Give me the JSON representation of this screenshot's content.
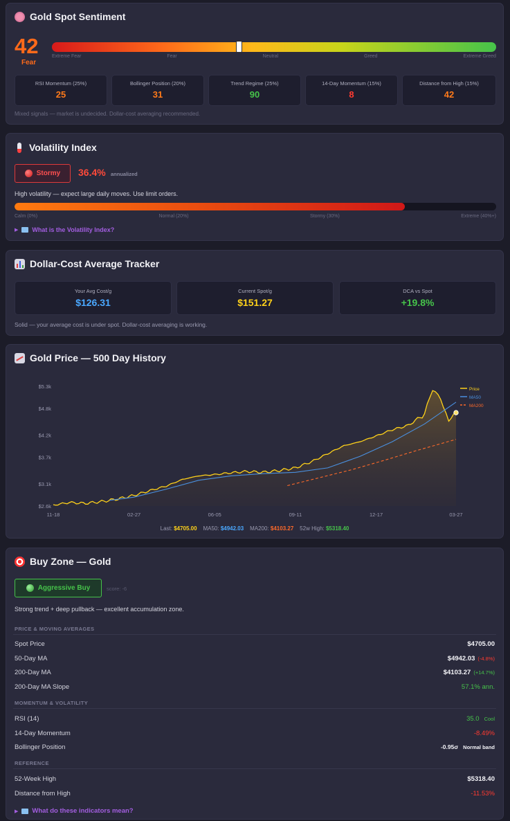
{
  "sentiment": {
    "title": "Gold Spot Sentiment",
    "score": "42",
    "label": "Fear",
    "gauge_level": 0.42,
    "scale": [
      "Extreme Fear",
      "Fear",
      "Neutral",
      "Greed",
      "Extreme Greed"
    ],
    "metrics": [
      {
        "label": "RSI Momentum (25%)",
        "value": "25",
        "color": "#ff7a1a"
      },
      {
        "label": "Bollinger Position (20%)",
        "value": "31",
        "color": "#ff7a1a"
      },
      {
        "label": "Trend Regime (25%)",
        "value": "90",
        "color": "#46c34a"
      },
      {
        "label": "14-Day Momentum (15%)",
        "value": "8",
        "color": "#ff3b30"
      },
      {
        "label": "Distance from High (15%)",
        "value": "42",
        "color": "#ff7a1a"
      }
    ],
    "note": "Mixed signals — market is undecided. Dollar-cost averaging recommended."
  },
  "volatility": {
    "title": "Volatility Index",
    "badge": "Stormy",
    "value": "36.4%",
    "unit": "annualized",
    "description": "High volatility — expect large daily moves. Use limit orders.",
    "level": 0.81,
    "scale": [
      "Calm (0%)",
      "Normal (20%)",
      "Stormy (30%)",
      "Extreme (40%+)"
    ],
    "link": "What is the Volatility Index?"
  },
  "dca": {
    "title": "Dollar-Cost Average Tracker",
    "cards": [
      {
        "label": "Your Avg Cost/g",
        "value": "$126.31",
        "color": "#4aa8ff"
      },
      {
        "label": "Current Spot/g",
        "value": "$151.27",
        "color": "#ffd21a"
      },
      {
        "label": "DCA vs Spot",
        "value": "+19.8%",
        "color": "#46c34a"
      }
    ],
    "note": "Solid — your average cost is under spot. Dollar-cost averaging is working."
  },
  "history": {
    "title": "Gold Price — 500 Day History",
    "legend": [
      "Price",
      "MA50",
      "MA200"
    ],
    "footer": {
      "last_label": "Last:",
      "last_value": "$4705.00",
      "ma50_label": "MA50:",
      "ma50_value": "$4942.03",
      "ma200_label": "MA200:",
      "ma200_value": "$4103.27",
      "high_label": "52w High:",
      "high_value": "$5318.40"
    }
  },
  "chart_data": {
    "type": "line",
    "title": "",
    "xlabel": "",
    "ylabel": "",
    "y_ticks": [
      "$5.3k",
      "$4.8k",
      "$4.2k",
      "$3.7k",
      "$3.1k",
      "$2.6k"
    ],
    "y_tick_values": [
      5300,
      4800,
      4200,
      3700,
      3100,
      2600
    ],
    "x_ticks": [
      "11-18",
      "02-27",
      "06-05",
      "09-11",
      "12-17",
      "03-27"
    ],
    "ylim": [
      2600,
      5300
    ],
    "series": [
      {
        "name": "Price",
        "color": "#ffd21a",
        "x": [
          0,
          20,
          40,
          60,
          80,
          100,
          120,
          140,
          160,
          180,
          200,
          220,
          240,
          260,
          280,
          300,
          320,
          340,
          360,
          380,
          400,
          420,
          440,
          460,
          470,
          480,
          490,
          499
        ],
        "values": [
          2620,
          2680,
          2660,
          2700,
          2760,
          2840,
          2950,
          3050,
          3200,
          3280,
          3310,
          3350,
          3380,
          3360,
          3400,
          3460,
          3600,
          3780,
          3960,
          4050,
          4180,
          4320,
          4420,
          4680,
          5200,
          5050,
          4520,
          4705
        ]
      },
      {
        "name": "MA50",
        "color": "#4a90e0",
        "x": [
          70,
          100,
          140,
          180,
          220,
          260,
          300,
          340,
          380,
          420,
          460,
          499
        ],
        "values": [
          2730,
          2800,
          2980,
          3180,
          3280,
          3330,
          3360,
          3460,
          3720,
          4050,
          4450,
          4942
        ]
      },
      {
        "name": "MA200",
        "color": "#ff6a2a",
        "x": [
          290,
          330,
          370,
          410,
          450,
          499
        ],
        "values": [
          3060,
          3240,
          3420,
          3630,
          3850,
          4103
        ]
      }
    ]
  },
  "buyzone": {
    "title": "Buy Zone — Gold",
    "badge": "Aggressive Buy",
    "score": "score: -6",
    "description": "Strong trend + deep pullback — excellent accumulation zone.",
    "sections": {
      "price": "PRICE & MOVING AVERAGES",
      "momentum": "MOMENTUM & VOLATILITY",
      "reference": "REFERENCE"
    },
    "rows": {
      "spot": {
        "label": "Spot Price",
        "value": "$4705.00"
      },
      "ma50": {
        "label": "50-Day MA",
        "value": "$4942.03",
        "extra": "(-4.8%)"
      },
      "ma200": {
        "label": "200-Day MA",
        "value": "$4103.27",
        "extra": "(+14.7%)"
      },
      "slope": {
        "label": "200-Day MA Slope",
        "value": "57.1% ann."
      },
      "rsi": {
        "label": "RSI (14)",
        "value": "35.0",
        "extra": "Cool"
      },
      "mom": {
        "label": "14-Day Momentum",
        "value": "-8.49%"
      },
      "boll": {
        "label": "Bollinger Position",
        "value": "-0.95σ",
        "extra": "Normal band"
      },
      "high": {
        "label": "52-Week High",
        "value": "$5318.40"
      },
      "dist": {
        "label": "Distance from High",
        "value": "-11.53%"
      }
    },
    "link": "What do these indicators mean?"
  }
}
